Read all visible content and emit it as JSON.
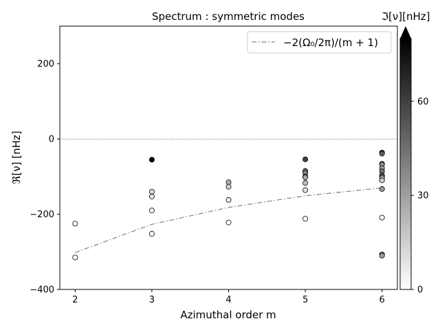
{
  "chart_data": {
    "type": "scatter",
    "title": "Spectrum : symmetric modes",
    "xlabel": "Azimuthal order m",
    "ylabel": "ℜ[ν] [nHz]",
    "xlim": [
      1.8,
      6.2
    ],
    "ylim": [
      -400,
      300
    ],
    "xticks": [
      2,
      3,
      4,
      5,
      6
    ],
    "yticks": [
      -400,
      -200,
      0,
      200
    ],
    "xtick_labels": [
      "2",
      "3",
      "4",
      "5",
      "6"
    ],
    "ytick_labels": [
      "−400",
      "−200",
      "0",
      "200"
    ],
    "zero_line": true,
    "grid": false,
    "legend_position": "top-right",
    "reference_line": {
      "name": "−2(Ω₀/2π)/(m + 1)",
      "style": "dash-dot",
      "color": "#808080",
      "x": [
        2,
        3,
        4,
        5,
        6
      ],
      "y": [
        -302,
        -227,
        -182,
        -151,
        -130
      ]
    },
    "points": [
      {
        "x": 2,
        "y": -225,
        "z": 0
      },
      {
        "x": 2,
        "y": -315,
        "z": 0
      },
      {
        "x": 3,
        "y": -55,
        "z": 80
      },
      {
        "x": 3,
        "y": -140,
        "z": 12
      },
      {
        "x": 3,
        "y": -153,
        "z": 8
      },
      {
        "x": 3,
        "y": -190,
        "z": 3
      },
      {
        "x": 3,
        "y": -252,
        "z": 0
      },
      {
        "x": 4,
        "y": -115,
        "z": 25
      },
      {
        "x": 4,
        "y": -127,
        "z": 15
      },
      {
        "x": 4,
        "y": -162,
        "z": 5
      },
      {
        "x": 4,
        "y": -222,
        "z": 0
      },
      {
        "x": 5,
        "y": -54,
        "z": 60
      },
      {
        "x": 5,
        "y": -85,
        "z": 45
      },
      {
        "x": 5,
        "y": -90,
        "z": 38
      },
      {
        "x": 5,
        "y": -100,
        "z": 30
      },
      {
        "x": 5,
        "y": -102,
        "z": 28
      },
      {
        "x": 5,
        "y": -117,
        "z": 20
      },
      {
        "x": 5,
        "y": -136,
        "z": 10
      },
      {
        "x": 5,
        "y": -212,
        "z": 0
      },
      {
        "x": 6,
        "y": -36,
        "z": 55
      },
      {
        "x": 6,
        "y": -39,
        "z": 50
      },
      {
        "x": 6,
        "y": -66,
        "z": 40
      },
      {
        "x": 6,
        "y": -68,
        "z": 36
      },
      {
        "x": 6,
        "y": -78,
        "z": 30
      },
      {
        "x": 6,
        "y": -86,
        "z": 45
      },
      {
        "x": 6,
        "y": -97,
        "z": 50
      },
      {
        "x": 6,
        "y": -100,
        "z": 35
      },
      {
        "x": 6,
        "y": -104,
        "z": 25
      },
      {
        "x": 6,
        "y": -110,
        "z": 15
      },
      {
        "x": 6,
        "y": -133,
        "z": 32
      },
      {
        "x": 6,
        "y": -209,
        "z": 3
      },
      {
        "x": 6,
        "y": -307,
        "z": 38
      },
      {
        "x": 6,
        "y": -310,
        "z": 30
      }
    ],
    "colorbar": {
      "label": "ℑ[ν][nHz]",
      "colormap": "greys",
      "range": [
        0,
        80
      ],
      "extend": "max",
      "ticks": [
        0,
        30,
        60
      ],
      "tick_labels": [
        "0",
        "30",
        "60"
      ]
    }
  }
}
